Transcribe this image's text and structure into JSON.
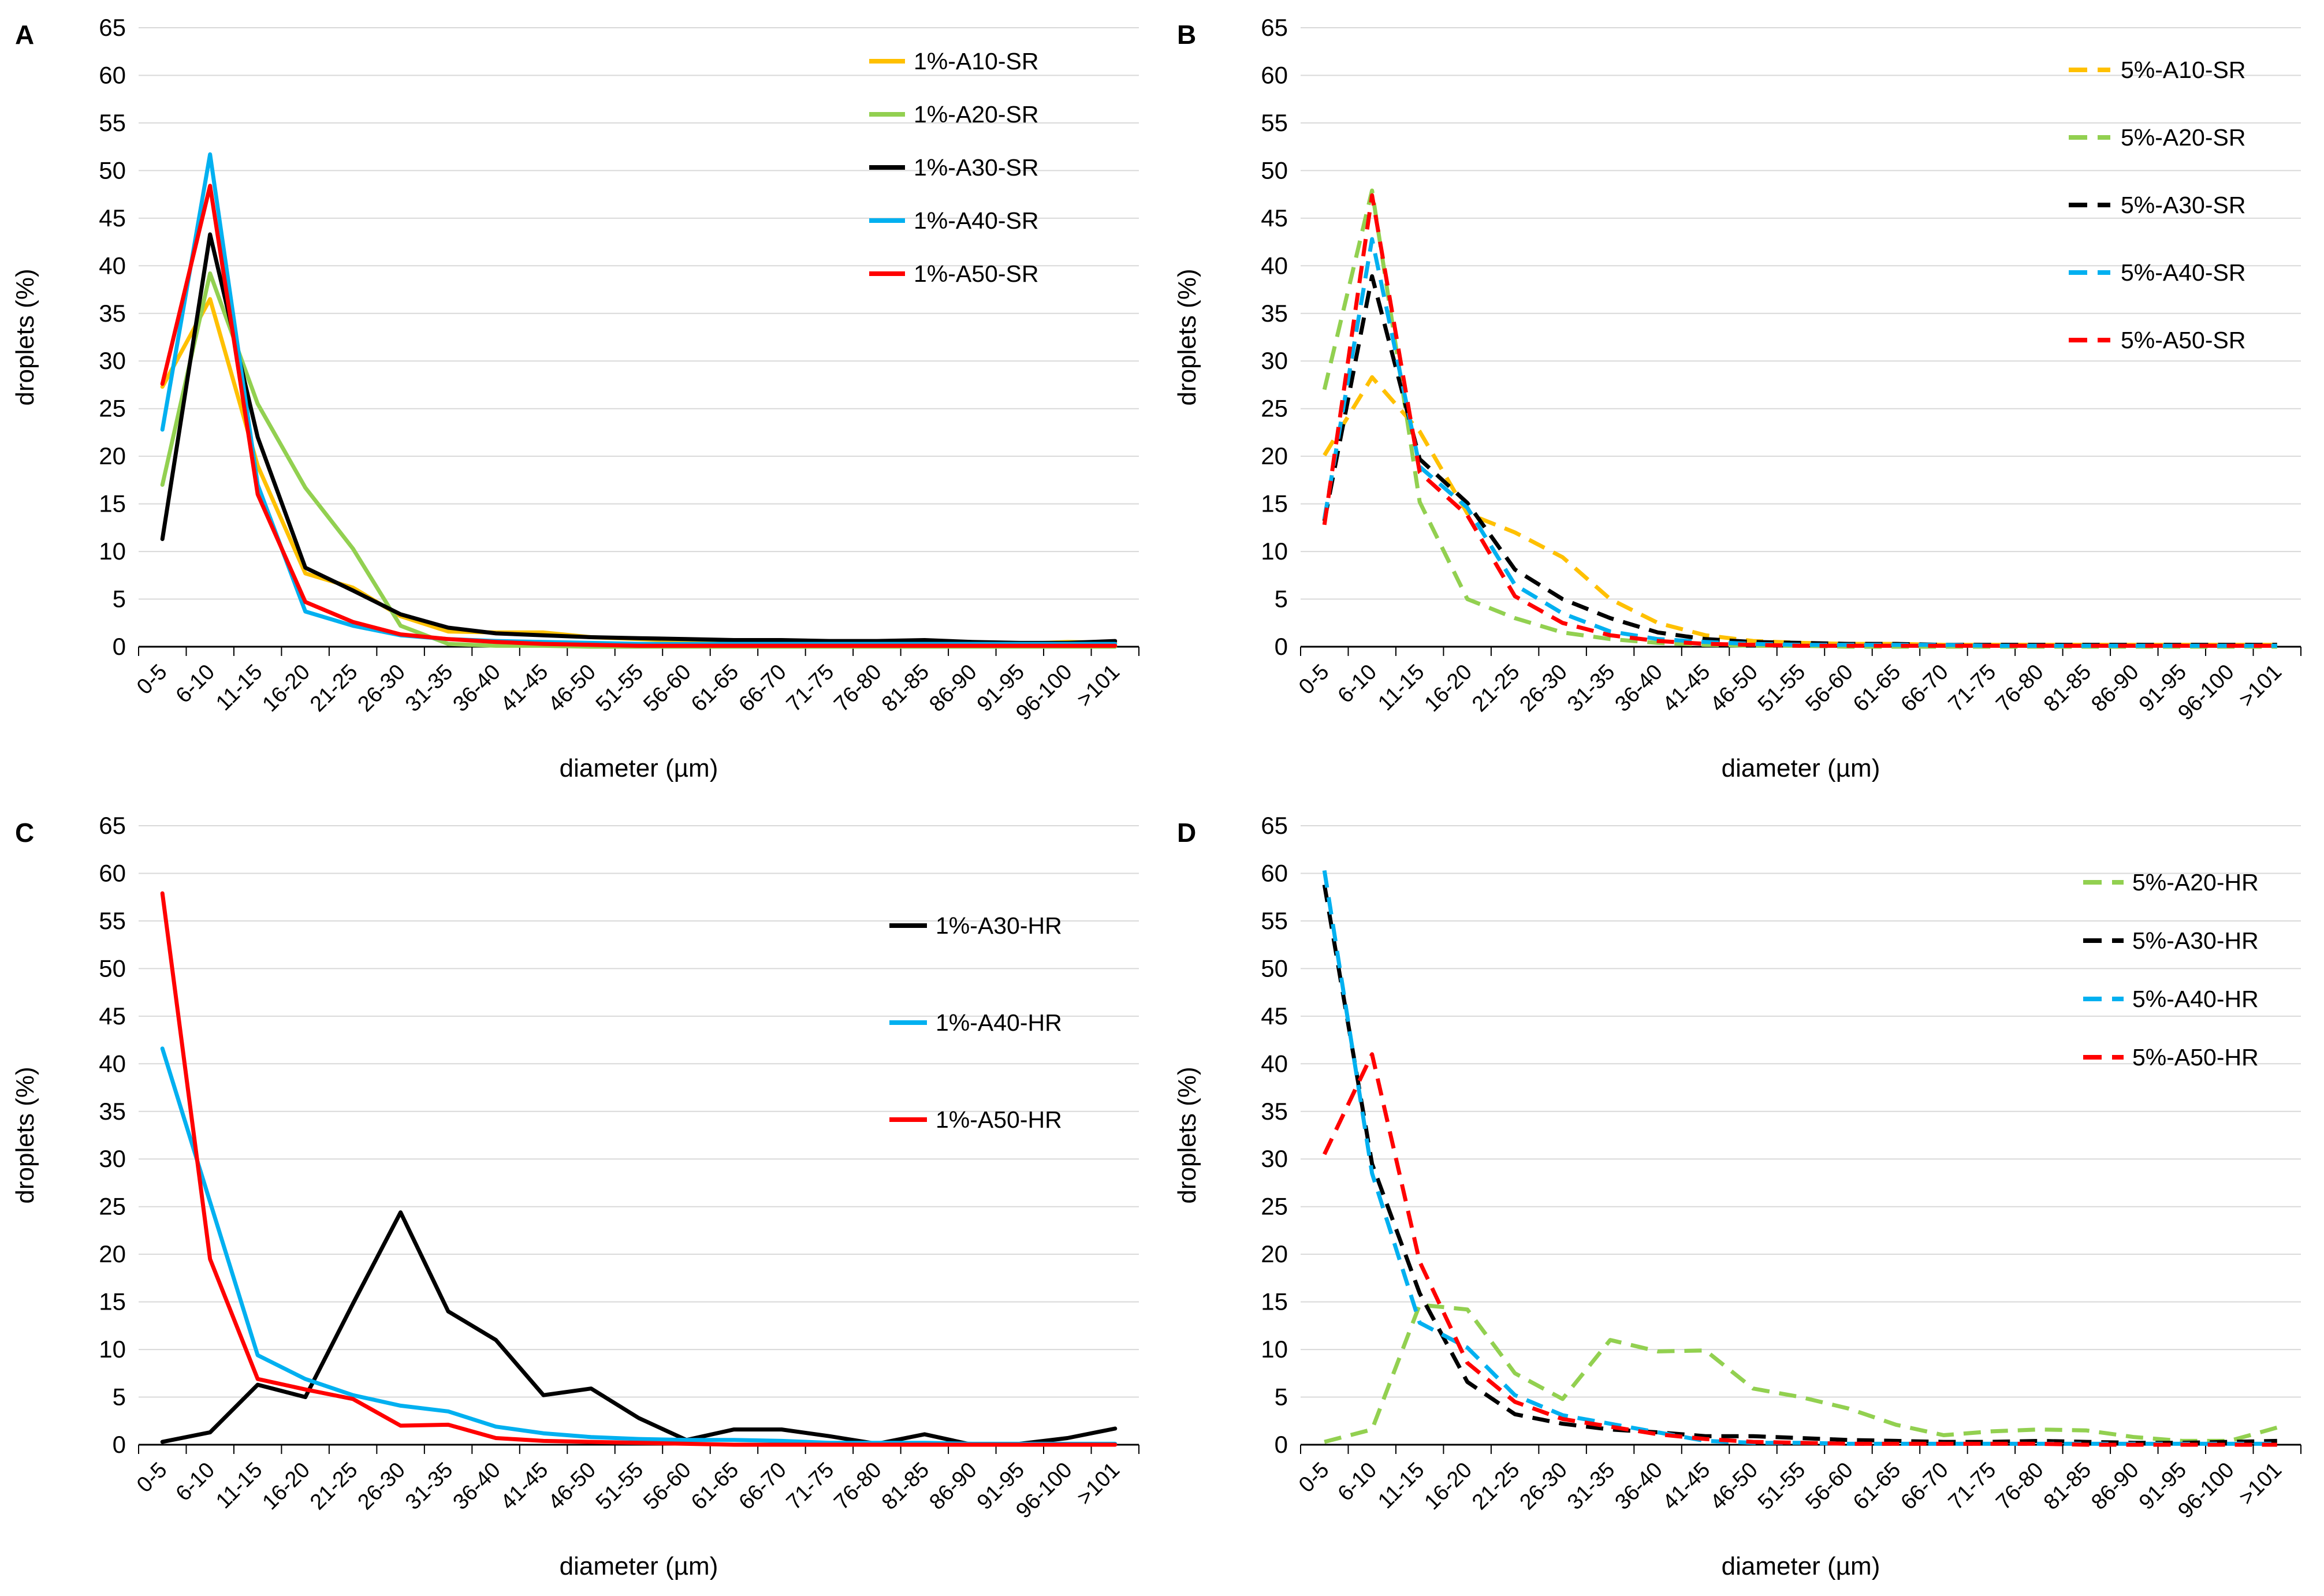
{
  "figure": {
    "background": "#ffffff",
    "axis_color": "#000000",
    "grid_color": "#d9d9d9"
  },
  "chart_data": [
    {
      "panel": "A",
      "type": "line",
      "xlabel": "diameter (µm)",
      "ylabel": "droplets (%)",
      "ylim": [
        0,
        65
      ],
      "ytick_step": 5,
      "grid": true,
      "line_style": "solid",
      "legend_position": "top-right-inside",
      "legend_layout": {
        "x_sample": 1505,
        "sample_len": 62,
        "text_x": 1582,
        "y0": 120,
        "dy": 92
      },
      "categories": [
        "0-5",
        "6-10",
        "11-15",
        "16-20",
        "21-25",
        "26-30",
        "31-35",
        "36-40",
        "41-45",
        "46-50",
        "51-55",
        "56-60",
        "61-65",
        "66-70",
        "71-75",
        "76-80",
        "81-85",
        "86-90",
        "91-95",
        "96-100",
        ">101"
      ],
      "series": [
        {
          "name": "1%-A10-SR",
          "color": "#FFC000",
          "dashed": false,
          "values": [
            27.3,
            36.5,
            19.0,
            7.7,
            6.2,
            3.2,
            1.6,
            1.5,
            1.5,
            1.0,
            0.8,
            0.6,
            0.5,
            0.5,
            0.4,
            0.5,
            0.4,
            0.4,
            0.3,
            0.5,
            0.4
          ]
        },
        {
          "name": "1%-A20-SR",
          "color": "#92D050",
          "dashed": false,
          "values": [
            17.0,
            39.2,
            25.5,
            16.7,
            10.3,
            2.2,
            0.3,
            0.1,
            0.1,
            0,
            0,
            0,
            0,
            0,
            0,
            0,
            0,
            0,
            0,
            0,
            0
          ]
        },
        {
          "name": "1%-A30-SR",
          "color": "#000000",
          "dashed": false,
          "values": [
            11.3,
            43.3,
            22.0,
            8.3,
            5.9,
            3.4,
            2.0,
            1.4,
            1.2,
            1.0,
            0.9,
            0.8,
            0.7,
            0.7,
            0.6,
            0.6,
            0.7,
            0.5,
            0.4,
            0.4,
            0.6
          ]
        },
        {
          "name": "1%-A40-SR",
          "color": "#00B0F0",
          "dashed": false,
          "values": [
            22.8,
            51.7,
            17.0,
            3.7,
            2.2,
            1.2,
            0.8,
            0.6,
            0.5,
            0.4,
            0.3,
            0.3,
            0.3,
            0.3,
            0.3,
            0.3,
            0.3,
            0.3,
            0.3,
            0.3,
            0.3
          ]
        },
        {
          "name": "1%-A50-SR",
          "color": "#FF0000",
          "dashed": false,
          "values": [
            27.6,
            48.4,
            16.0,
            4.7,
            2.6,
            1.3,
            0.8,
            0.5,
            0.3,
            0.2,
            0.1,
            0.1,
            0.1,
            0.1,
            0.1,
            0.1,
            0.1,
            0.1,
            0.1,
            0.1,
            0.1
          ]
        }
      ]
    },
    {
      "panel": "B",
      "type": "line",
      "xlabel": "diameter (µm)",
      "ylabel": "droplets (%)",
      "ylim": [
        0,
        65
      ],
      "ytick_step": 5,
      "grid": true,
      "line_style": "dashed",
      "legend_position": "top-right-inside",
      "legend_layout": {
        "x_sample": 1570,
        "sample_len": 72,
        "text_x": 1660,
        "y0": 135,
        "dy": 117
      },
      "categories": [
        "0-5",
        "6-10",
        "11-15",
        "16-20",
        "21-25",
        "26-30",
        "31-35",
        "36-40",
        "41-45",
        "46-50",
        "51-55",
        "56-60",
        "61-65",
        "66-70",
        "71-75",
        "76-80",
        "81-85",
        "86-90",
        "91-95",
        "96-100",
        ">101"
      ],
      "series": [
        {
          "name": "5%-A10-SR",
          "color": "#FFC000",
          "dashed": true,
          "values": [
            20.1,
            28.3,
            22.6,
            14.0,
            12.0,
            9.4,
            5.0,
            2.5,
            1.2,
            0.6,
            0.4,
            0.3,
            0.3,
            0.2,
            0.2,
            0.2,
            0.2,
            0.2,
            0.2,
            0.2,
            0.2
          ]
        },
        {
          "name": "5%-A20-SR",
          "color": "#92D050",
          "dashed": true,
          "values": [
            27.0,
            47.9,
            15.2,
            5.0,
            3.0,
            1.5,
            0.8,
            0.4,
            0.2,
            0.1,
            0.1,
            0,
            0,
            0,
            0,
            0,
            0,
            0,
            0,
            0,
            0
          ]
        },
        {
          "name": "5%-A30-SR",
          "color": "#000000",
          "dashed": true,
          "values": [
            13.2,
            38.9,
            19.7,
            15.1,
            8.1,
            5.0,
            3.0,
            1.5,
            0.8,
            0.5,
            0.4,
            0.3,
            0.3,
            0.2,
            0.2,
            0.2,
            0.2,
            0.2,
            0.2,
            0.2,
            0.2
          ]
        },
        {
          "name": "5%-A40-SR",
          "color": "#00B0F0",
          "dashed": true,
          "values": [
            13.4,
            42.8,
            18.9,
            14.6,
            6.5,
            3.5,
            1.6,
            0.8,
            0.5,
            0.3,
            0.2,
            0.2,
            0.2,
            0.2,
            0.1,
            0.1,
            0.1,
            0.1,
            0.1,
            0.1,
            0.1
          ]
        },
        {
          "name": "5%-A50-SR",
          "color": "#FF0000",
          "dashed": true,
          "values": [
            12.8,
            47.4,
            18.3,
            13.8,
            5.3,
            2.5,
            1.2,
            0.6,
            0.3,
            0.2,
            0.1,
            0.1,
            0.1,
            0.1,
            0.1,
            0.1,
            0.1,
            0.1,
            0.1,
            0.1,
            0.1
          ]
        }
      ]
    },
    {
      "panel": "C",
      "type": "line",
      "xlabel": "diameter (µm)",
      "ylabel": "droplets (%)",
      "ylim": [
        0,
        65
      ],
      "ytick_step": 5,
      "grid": true,
      "line_style": "solid",
      "legend_position": "middle-right-inside",
      "legend_layout": {
        "x_sample": 1540,
        "sample_len": 65,
        "text_x": 1620,
        "y0": 235,
        "dy": 168
      },
      "categories": [
        "0-5",
        "6-10",
        "11-15",
        "16-20",
        "21-25",
        "26-30",
        "31-35",
        "36-40",
        "41-45",
        "46-50",
        "51-55",
        "56-60",
        "61-65",
        "66-70",
        "71-75",
        "76-80",
        "81-85",
        "86-90",
        "91-95",
        "96-100",
        ">101"
      ],
      "series": [
        {
          "name": "1%-A30-HR",
          "color": "#000000",
          "dashed": false,
          "values": [
            0.3,
            1.3,
            6.3,
            5.0,
            14.8,
            24.4,
            14.0,
            11.0,
            5.2,
            5.9,
            2.8,
            0.5,
            1.6,
            1.6,
            0.9,
            0.1,
            1.1,
            0,
            0.1,
            0.7,
            1.7
          ]
        },
        {
          "name": "1%-A40-HR",
          "color": "#00B0F0",
          "dashed": false,
          "values": [
            41.6,
            25.5,
            9.4,
            6.9,
            5.2,
            4.1,
            3.5,
            1.9,
            1.2,
            0.8,
            0.6,
            0.5,
            0.5,
            0.4,
            0.2,
            0.2,
            0.2,
            0.1,
            0.1,
            0.1,
            0.1
          ]
        },
        {
          "name": "1%-A50-HR",
          "color": "#FF0000",
          "dashed": false,
          "values": [
            57.9,
            19.5,
            6.9,
            5.8,
            4.8,
            2.0,
            2.1,
            0.7,
            0.4,
            0.3,
            0.2,
            0.1,
            0,
            0,
            0,
            0,
            0,
            0,
            0,
            0,
            0
          ]
        }
      ]
    },
    {
      "panel": "D",
      "type": "line",
      "xlabel": "diameter (µm)",
      "ylabel": "droplets (%)",
      "ylim": [
        0,
        65
      ],
      "ytick_step": 5,
      "grid": true,
      "line_style": "dashed",
      "legend_position": "top-right-inside",
      "legend_layout": {
        "x_sample": 1595,
        "sample_len": 70,
        "text_x": 1680,
        "y0": 160,
        "dy": 101
      },
      "categories": [
        "0-5",
        "6-10",
        "11-15",
        "16-20",
        "21-25",
        "26-30",
        "31-35",
        "36-40",
        "41-45",
        "46-50",
        "51-55",
        "56-60",
        "61-65",
        "66-70",
        "71-75",
        "76-80",
        "81-85",
        "86-90",
        "91-95",
        "96-100",
        ">101"
      ],
      "series": [
        {
          "name": "5%-A20-HR",
          "color": "#92D050",
          "dashed": true,
          "values": [
            0.3,
            1.6,
            14.7,
            14.2,
            7.5,
            4.8,
            11.0,
            9.8,
            9.9,
            5.9,
            5.0,
            3.8,
            2.1,
            1.0,
            1.4,
            1.6,
            1.5,
            0.8,
            0.4,
            0.4,
            1.8
          ]
        },
        {
          "name": "5%-A30-HR",
          "color": "#000000",
          "dashed": true,
          "values": [
            58.8,
            29.5,
            15.9,
            6.6,
            3.2,
            2.2,
            1.6,
            1.3,
            0.9,
            0.9,
            0.7,
            0.5,
            0.4,
            0.3,
            0.3,
            0.4,
            0.3,
            0.2,
            0.2,
            0.3,
            0.4
          ]
        },
        {
          "name": "5%-A40-HR",
          "color": "#00B0F0",
          "dashed": true,
          "values": [
            60.3,
            28.5,
            12.8,
            10.2,
            5.2,
            3.1,
            2.2,
            1.3,
            0.4,
            0.2,
            0.2,
            0.1,
            0.1,
            0.1,
            0.1,
            0.1,
            0.1,
            0.1,
            0.1,
            0.1,
            0.1
          ]
        },
        {
          "name": "5%-A50-HR",
          "color": "#FF0000",
          "dashed": true,
          "values": [
            30.5,
            41.0,
            19.2,
            8.6,
            4.5,
            2.7,
            1.9,
            1.1,
            0.6,
            0.3,
            0.2,
            0.1,
            0.1,
            0.1,
            0.1,
            0.1,
            0,
            0,
            0,
            0,
            0
          ]
        }
      ]
    }
  ]
}
